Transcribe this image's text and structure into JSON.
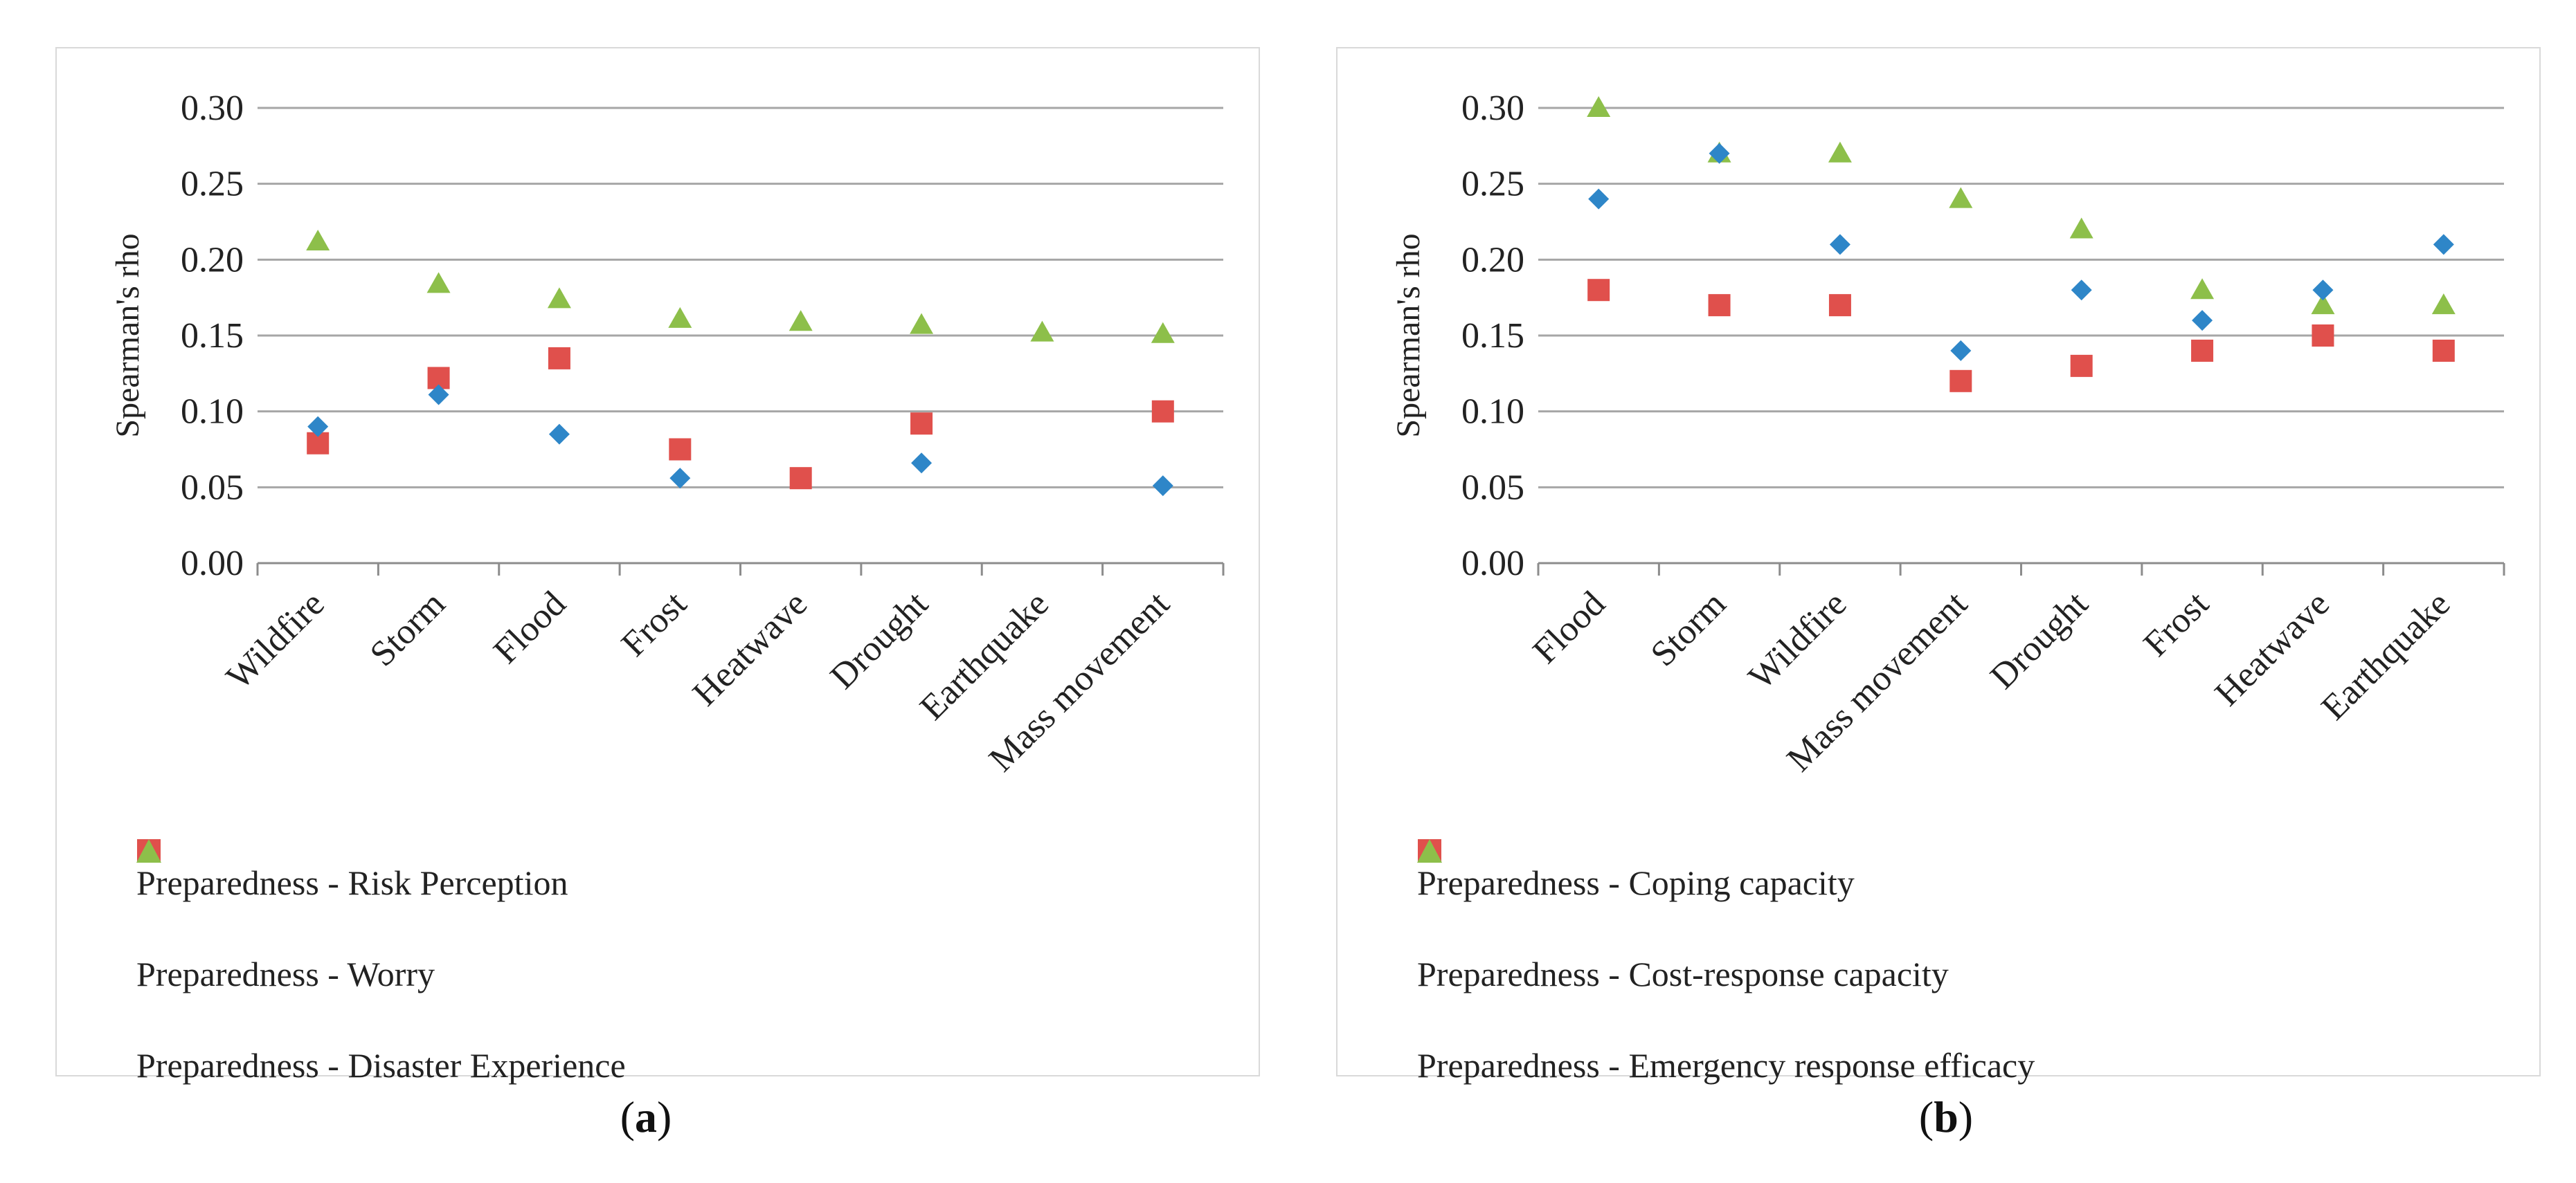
{
  "colors": {
    "blue": "#2e86c8",
    "red": "#e0504c",
    "green": "#8dbf4a",
    "grid": "#a6a6a6",
    "axis": "#8c8c8c",
    "text": "#222222"
  },
  "chart_data": [
    {
      "type": "scatter",
      "panel": "a",
      "ylabel": "Spearman's rho",
      "ylim": [
        0,
        0.3
      ],
      "yticks": [
        "0.00",
        "0.05",
        "0.10",
        "0.15",
        "0.20",
        "0.25",
        "0.30"
      ],
      "categories": [
        "Wildfire",
        "Storm",
        "Flood",
        "Frost",
        "Heatwave",
        "Drought",
        "Earthquake",
        "Mass movement"
      ],
      "series": [
        {
          "name": "Preparedness - Risk Perception",
          "marker": "diamond",
          "color": "#2e86c8",
          "values": [
            0.09,
            0.111,
            0.085,
            0.056,
            null,
            0.066,
            null,
            0.051
          ]
        },
        {
          "name": "Preparedness - Worry",
          "marker": "square",
          "color": "#e0504c",
          "values": [
            0.079,
            0.122,
            0.135,
            0.075,
            0.056,
            0.092,
            null,
            0.1
          ]
        },
        {
          "name": "Preparedness - Disaster Experience",
          "marker": "triangle",
          "color": "#8dbf4a",
          "values": [
            0.212,
            0.184,
            0.174,
            0.161,
            0.159,
            0.157,
            0.152,
            0.151
          ]
        }
      ]
    },
    {
      "type": "scatter",
      "panel": "b",
      "ylabel": "Spearman's rho",
      "ylim": [
        0,
        0.3
      ],
      "yticks": [
        "0.00",
        "0.05",
        "0.10",
        "0.15",
        "0.20",
        "0.25",
        "0.30"
      ],
      "categories": [
        "Flood",
        "Storm",
        "Wildfire",
        "Mass movement",
        "Drought",
        "Frost",
        "Heatwave",
        "Earthquake"
      ],
      "series": [
        {
          "name": "Preparedness - Coping capacity",
          "marker": "diamond",
          "color": "#2e86c8",
          "values": [
            0.24,
            0.27,
            0.21,
            0.14,
            0.18,
            0.16,
            0.18,
            0.21
          ]
        },
        {
          "name": "Preparedness - Cost-response capacity",
          "marker": "square",
          "color": "#e0504c",
          "values": [
            0.18,
            0.17,
            0.17,
            0.12,
            0.13,
            0.14,
            0.15,
            0.14
          ]
        },
        {
          "name": "Preparedness - Emergency response efficacy",
          "marker": "triangle",
          "color": "#8dbf4a",
          "values": [
            0.3,
            0.27,
            0.27,
            0.24,
            0.22,
            0.18,
            0.17,
            0.17
          ]
        }
      ]
    }
  ],
  "captions": {
    "a": "a",
    "b": "b"
  }
}
